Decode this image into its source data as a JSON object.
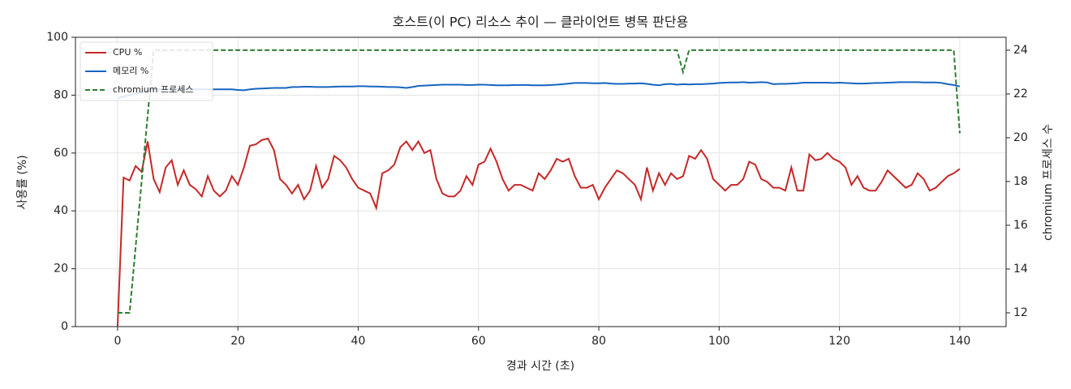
{
  "chart_data": {
    "type": "line",
    "title": "호스트(이 PC) 리소스 추이 — 클라이언트 병목 판단용",
    "xlabel": "경과 시간 (초)",
    "ylabel": "사용률 (%)",
    "y2label": "chromium 프로세스 수",
    "x": [
      0,
      1,
      2,
      3,
      4,
      5,
      6,
      7,
      8,
      9,
      10,
      11,
      12,
      13,
      14,
      15,
      16,
      17,
      18,
      19,
      20,
      21,
      22,
      23,
      24,
      25,
      26,
      27,
      28,
      29,
      30,
      31,
      32,
      33,
      34,
      35,
      36,
      37,
      38,
      39,
      40,
      41,
      42,
      43,
      44,
      45,
      46,
      47,
      48,
      49,
      50,
      51,
      52,
      53,
      54,
      55,
      56,
      57,
      58,
      59,
      60,
      61,
      62,
      63,
      64,
      65,
      66,
      67,
      68,
      69,
      70,
      71,
      72,
      73,
      74,
      75,
      76,
      77,
      78,
      79,
      80,
      81,
      82,
      83,
      84,
      85,
      86,
      87,
      88,
      89,
      90,
      91,
      92,
      93,
      94,
      95,
      96,
      97,
      98,
      99,
      100,
      101,
      102,
      103,
      104,
      105,
      106,
      107,
      108,
      109,
      110,
      111,
      112,
      113,
      114,
      115,
      116,
      117,
      118,
      119,
      120,
      121,
      122,
      123,
      124,
      125,
      126,
      127,
      128,
      129,
      130,
      131,
      132,
      133,
      134,
      135,
      136,
      137,
      138,
      139,
      140
    ],
    "series": [
      {
        "name": "CPU %",
        "color": "#c62828",
        "linestyle": "solid",
        "values": [
          0,
          51.5,
          50.5,
          55.5,
          53.5,
          64,
          51,
          46.5,
          55,
          57.5,
          49,
          54,
          49,
          47.5,
          45,
          52,
          47,
          45,
          47,
          52,
          49,
          55,
          62.5,
          63,
          64.5,
          65,
          61,
          51,
          49,
          46,
          49,
          44,
          47,
          55.5,
          48,
          51,
          59,
          57.5,
          55,
          51,
          48,
          47,
          46,
          41,
          53,
          54,
          56,
          62,
          64,
          61,
          64,
          60,
          61,
          51,
          46,
          45,
          45,
          47,
          52,
          49,
          56,
          57,
          61.5,
          57,
          51,
          47,
          49,
          49,
          48,
          47,
          53,
          51,
          54,
          58,
          57,
          58,
          52,
          48,
          48,
          49,
          44,
          48,
          51,
          54,
          53,
          51,
          49,
          44,
          55,
          47,
          53,
          49,
          53,
          51,
          52,
          59,
          58,
          61,
          58,
          51,
          49,
          47,
          49,
          49,
          51,
          57,
          56,
          51,
          50,
          48,
          48,
          47,
          55,
          47,
          47,
          59.5,
          57.5,
          58,
          60,
          58,
          57,
          55,
          49,
          52,
          48,
          47,
          47,
          50,
          54,
          52,
          50,
          48,
          49,
          53,
          51,
          47,
          48,
          50,
          52,
          53,
          54.5
        ]
      },
      {
        "name": "메모리 %",
        "color": "#1565c0",
        "linestyle": "solid",
        "values": [
          79,
          79.5,
          80,
          80.5,
          81,
          81.5,
          82,
          82,
          82,
          82,
          82,
          82,
          82,
          82,
          82,
          82,
          82,
          82,
          82,
          82,
          81.8,
          81.7,
          82,
          82.2,
          82.3,
          82.4,
          82.5,
          82.5,
          82.5,
          82.8,
          82.8,
          82.9,
          82.9,
          82.8,
          82.8,
          82.8,
          82.9,
          83,
          83,
          83,
          83.1,
          83.1,
          83,
          83,
          82.9,
          82.8,
          82.8,
          82.7,
          82.5,
          82.8,
          83.2,
          83.3,
          83.4,
          83.5,
          83.6,
          83.6,
          83.6,
          83.6,
          83.5,
          83.5,
          83.6,
          83.6,
          83.5,
          83.4,
          83.4,
          83.4,
          83.5,
          83.5,
          83.5,
          83.4,
          83.4,
          83.4,
          83.5,
          83.6,
          83.8,
          84,
          84.2,
          84.2,
          84.2,
          84.1,
          84.1,
          84.2,
          84,
          83.9,
          83.9,
          84,
          84,
          84.1,
          83.9,
          83.6,
          83.4,
          83.8,
          83.9,
          83.6,
          83.8,
          83.7,
          83.8,
          83.8,
          83.9,
          84,
          84.2,
          84.3,
          84.4,
          84.4,
          84.5,
          84.3,
          84.4,
          84.5,
          84.4,
          83.8,
          83.9,
          83.9,
          84,
          84.1,
          84.3,
          84.3,
          84.3,
          84.3,
          84.3,
          84.2,
          84.3,
          84.2,
          84.1,
          84,
          84,
          84.1,
          84.2,
          84.2,
          84.3,
          84.4,
          84.5,
          84.5,
          84.5,
          84.5,
          84.4,
          84.4,
          84.4,
          84.2,
          83.8,
          83.5,
          83
        ]
      },
      {
        "name": "chromium 프로세스",
        "color": "#2e7d32",
        "linestyle": "dashed",
        "axis": "y2",
        "values": [
          12,
          12,
          12,
          15,
          18,
          21,
          24,
          24,
          24,
          24,
          24,
          24,
          24,
          24,
          24,
          24,
          24,
          24,
          24,
          24,
          24,
          24,
          24,
          24,
          24,
          24,
          24,
          24,
          24,
          24,
          24,
          24,
          24,
          24,
          24,
          24,
          24,
          24,
          24,
          24,
          24,
          24,
          24,
          24,
          24,
          24,
          24,
          24,
          24,
          24,
          24,
          24,
          24,
          24,
          24,
          24,
          24,
          24,
          24,
          24,
          24,
          24,
          24,
          24,
          24,
          24,
          24,
          24,
          24,
          24,
          24,
          24,
          24,
          24,
          24,
          24,
          24,
          24,
          24,
          24,
          24,
          24,
          24,
          24,
          24,
          24,
          24,
          24,
          24,
          24,
          24,
          24,
          24,
          24,
          23,
          24,
          24,
          24,
          24,
          24,
          24,
          24,
          24,
          24,
          24,
          24,
          24,
          24,
          24,
          24,
          24,
          24,
          24,
          24,
          24,
          24,
          24,
          24,
          24,
          24,
          24,
          24,
          24,
          24,
          24,
          24,
          24,
          24,
          24,
          24,
          24,
          24,
          24,
          24,
          24,
          24,
          24,
          24,
          24,
          24,
          20.2
        ]
      }
    ],
    "xlim": [
      -7.0,
      147.7
    ],
    "xticks": [
      0,
      20,
      40,
      60,
      80,
      100,
      120,
      140
    ],
    "ylim": [
      0,
      100
    ],
    "yticks": [
      0,
      20,
      40,
      60,
      80,
      100
    ],
    "y2lim": [
      11.37,
      24.59
    ],
    "y2ticks": [
      12,
      14,
      16,
      18,
      20,
      22,
      24
    ],
    "grid": true,
    "legend": "upper left"
  }
}
